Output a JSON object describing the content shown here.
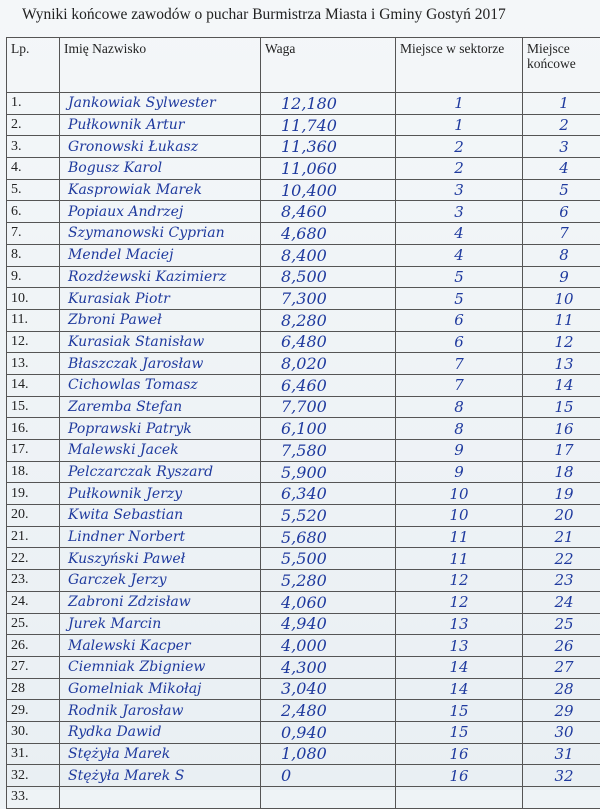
{
  "title": "Wyniki końcowe zawodów o puchar Burmistrza Miasta i Gminy Gostyń 2017",
  "headers": [
    "Lp.",
    "Imię Nazwisko",
    "Waga",
    "Miejsce w sektorze",
    "Miejsce końcowe"
  ],
  "rows": [
    [
      "1.",
      "Jankowiak Sylwester",
      "12,180",
      "1",
      "1"
    ],
    [
      "2.",
      "Pułkownik Artur",
      "11,740",
      "1",
      "2"
    ],
    [
      "3.",
      "Gronowski Łukasz",
      "11,360",
      "2",
      "3"
    ],
    [
      "4.",
      "Bogusz Karol",
      "11,060",
      "2",
      "4"
    ],
    [
      "5.",
      "Kasprowiak Marek",
      "10,400",
      "3",
      "5"
    ],
    [
      "6.",
      "Popiaux Andrzej",
      "8,460",
      "3",
      "6"
    ],
    [
      "7.",
      "Szymanowski Cyprian",
      "4,680",
      "4",
      "7"
    ],
    [
      "8.",
      "Mendel Maciej",
      "8,400",
      "4",
      "8"
    ],
    [
      "9.",
      "Rozdżewski Kazimierz",
      "8,500",
      "5",
      "9"
    ],
    [
      "10.",
      "Kurasiak Piotr",
      "7,300",
      "5",
      "10"
    ],
    [
      "11.",
      "Zbroni Paweł",
      "8,280",
      "6",
      "11"
    ],
    [
      "12.",
      "Kurasiak Stanisław",
      "6,480",
      "6",
      "12"
    ],
    [
      "13.",
      "Błaszczak Jarosław",
      "8,020",
      "7",
      "13"
    ],
    [
      "14.",
      "Cichowlas Tomasz",
      "6,460",
      "7",
      "14"
    ],
    [
      "15.",
      "Zaremba Stefan",
      "7,700",
      "8",
      "15"
    ],
    [
      "16.",
      "Poprawski Patryk",
      "6,100",
      "8",
      "16"
    ],
    [
      "17.",
      "Malewski Jacek",
      "7,580",
      "9",
      "17"
    ],
    [
      "18.",
      "Pelczarczak Ryszard",
      "5,900",
      "9",
      "18"
    ],
    [
      "19.",
      "Pułkownik Jerzy",
      "6,340",
      "10",
      "19"
    ],
    [
      "20.",
      "Kwita Sebastian",
      "5,520",
      "10",
      "20"
    ],
    [
      "21.",
      "Lindner Norbert",
      "5,680",
      "11",
      "21"
    ],
    [
      "22.",
      "Kuszyński Paweł",
      "5,500",
      "11",
      "22"
    ],
    [
      "23.",
      "Garczek Jerzy",
      "5,280",
      "12",
      "23"
    ],
    [
      "24.",
      "Zabroni Zdzisław",
      "4,060",
      "12",
      "24"
    ],
    [
      "25.",
      "Jurek Marcin",
      "4,940",
      "13",
      "25"
    ],
    [
      "26.",
      "Malewski Kacper",
      "4,000",
      "13",
      "26"
    ],
    [
      "27.",
      "Ciemniak Zbigniew",
      "4,300",
      "14",
      "27"
    ],
    [
      "28",
      "Gomelniak Mikołaj",
      "3,040",
      "14",
      "28"
    ],
    [
      "29.",
      "Rodnik Jarosław",
      "2,480",
      "15",
      "29"
    ],
    [
      "30.",
      "Rydka Dawid",
      "0,940",
      "15",
      "30"
    ],
    [
      "31.",
      "Stężyła Marek",
      "1,080",
      "16",
      "31"
    ],
    [
      "32.",
      "Stężyła Marek S",
      "0",
      "16",
      "32"
    ],
    [
      "33.",
      "",
      "",
      "",
      ""
    ]
  ]
}
